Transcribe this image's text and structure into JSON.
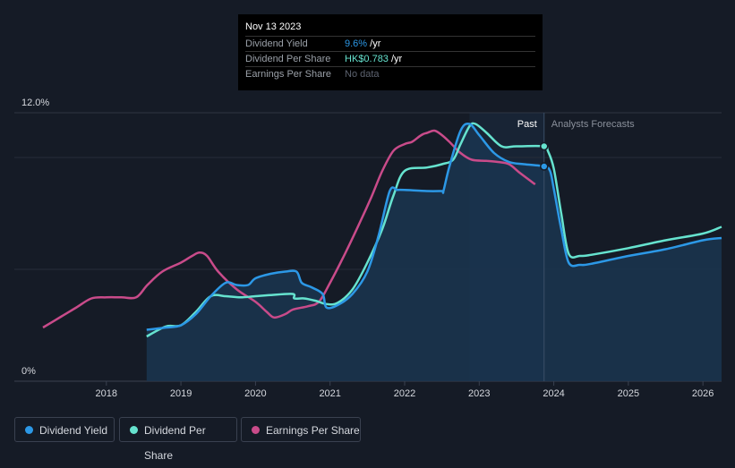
{
  "tooltip": {
    "date": "Nov 13 2023",
    "rows": [
      {
        "label": "Dividend Yield",
        "value": "9.6%",
        "unit": " /yr"
      },
      {
        "label": "Dividend Per Share",
        "value": "HK$0.783",
        "unit": " /yr"
      },
      {
        "label": "Earnings Per Share",
        "value": "No data",
        "unit": ""
      }
    ]
  },
  "legend": [
    {
      "label": "Dividend Yield",
      "color": "#2c98e6"
    },
    {
      "label": "Dividend Per Share",
      "color": "#66e3cf"
    },
    {
      "label": "Earnings Per Share",
      "color": "#c94b8a"
    }
  ],
  "chart_data": {
    "type": "line",
    "ylabel_top": "12.0%",
    "ylabel_bottom": "0%",
    "ylim": [
      0,
      12
    ],
    "xlim": [
      2017.15,
      2026.25
    ],
    "x_ticks": [
      "2018",
      "2019",
      "2020",
      "2021",
      "2022",
      "2023",
      "2024",
      "2025",
      "2026"
    ],
    "past_label": "Past",
    "forecast_label": "Analysts Forecasts",
    "forecast_start": 2023.87,
    "highlight_start": 2022.87,
    "colors": {
      "yield": "#2c98e6",
      "dps": "#66e3cf",
      "eps": "#c94b8a",
      "area": "#1a3550"
    },
    "series": [
      {
        "name": "Dividend Yield",
        "key": "yield",
        "x": [
          2018.54,
          2018.8,
          2019.0,
          2019.2,
          2019.4,
          2019.6,
          2019.75,
          2019.9,
          2020.0,
          2020.2,
          2020.4,
          2020.55,
          2020.62,
          2020.75,
          2020.9,
          2020.95,
          2021.1,
          2021.3,
          2021.5,
          2021.65,
          2021.8,
          2021.9,
          2022.0,
          2022.3,
          2022.5,
          2022.52,
          2022.6,
          2022.75,
          2022.87,
          2023.0,
          2023.2,
          2023.4,
          2023.6,
          2023.87,
          2023.95,
          2024.0,
          2024.1,
          2024.2,
          2024.35,
          2024.5,
          2025.0,
          2025.5,
          2026.0,
          2026.25
        ],
        "values": [
          2.3,
          2.4,
          2.5,
          3.0,
          3.8,
          4.4,
          4.3,
          4.3,
          4.6,
          4.8,
          4.9,
          4.9,
          4.4,
          4.2,
          3.9,
          3.3,
          3.4,
          3.9,
          4.9,
          6.5,
          8.5,
          8.55,
          8.55,
          8.5,
          8.5,
          8.5,
          9.6,
          11.2,
          11.5,
          11.0,
          10.2,
          9.8,
          9.7,
          9.6,
          9.4,
          8.6,
          6.8,
          5.3,
          5.2,
          5.25,
          5.6,
          5.9,
          6.3,
          6.4
        ]
      },
      {
        "name": "Dividend Per Share",
        "key": "dps",
        "x": [
          2018.54,
          2018.8,
          2019.0,
          2019.2,
          2019.4,
          2019.6,
          2019.8,
          2020.0,
          2020.2,
          2020.5,
          2020.52,
          2020.65,
          2020.8,
          2020.95,
          2021.1,
          2021.3,
          2021.5,
          2021.7,
          2021.85,
          2022.0,
          2022.3,
          2022.5,
          2022.65,
          2022.75,
          2022.87,
          2022.95,
          2023.1,
          2023.3,
          2023.5,
          2023.87,
          2023.92,
          2024.0,
          2024.1,
          2024.2,
          2024.35,
          2024.5,
          2025.0,
          2025.5,
          2026.0,
          2026.25
        ],
        "values": [
          2.0,
          2.45,
          2.5,
          3.1,
          3.8,
          3.8,
          3.75,
          3.8,
          3.85,
          3.9,
          3.7,
          3.7,
          3.6,
          3.45,
          3.5,
          4.1,
          5.3,
          6.8,
          8.3,
          9.4,
          9.55,
          9.7,
          9.9,
          10.6,
          11.4,
          11.5,
          11.1,
          10.5,
          10.5,
          10.5,
          10.3,
          9.5,
          7.5,
          5.7,
          5.6,
          5.65,
          5.95,
          6.3,
          6.6,
          6.9
        ]
      },
      {
        "name": "Earnings Per Share",
        "key": "eps",
        "x": [
          2017.15,
          2017.4,
          2017.6,
          2017.8,
          2018.0,
          2018.2,
          2018.4,
          2018.55,
          2018.75,
          2019.0,
          2019.15,
          2019.25,
          2019.35,
          2019.5,
          2019.75,
          2020.0,
          2020.15,
          2020.25,
          2020.4,
          2020.5,
          2020.7,
          2020.85,
          2021.0,
          2021.2,
          2021.4,
          2021.55,
          2021.7,
          2021.85,
          2022.0,
          2022.1,
          2022.2,
          2022.25,
          2022.3,
          2022.4,
          2022.5,
          2022.6,
          2022.75,
          2022.9,
          2023.1,
          2023.25,
          2023.4,
          2023.55,
          2023.75
        ],
        "values": [
          2.4,
          2.9,
          3.3,
          3.7,
          3.75,
          3.75,
          3.75,
          4.3,
          4.9,
          5.3,
          5.6,
          5.75,
          5.6,
          4.9,
          4.1,
          3.55,
          3.1,
          2.85,
          3.0,
          3.2,
          3.35,
          3.55,
          4.4,
          5.7,
          7.1,
          8.2,
          9.4,
          10.3,
          10.6,
          10.7,
          10.95,
          11.05,
          11.1,
          11.2,
          11.0,
          10.7,
          10.2,
          9.9,
          9.85,
          9.8,
          9.7,
          9.3,
          8.8
        ]
      }
    ]
  }
}
